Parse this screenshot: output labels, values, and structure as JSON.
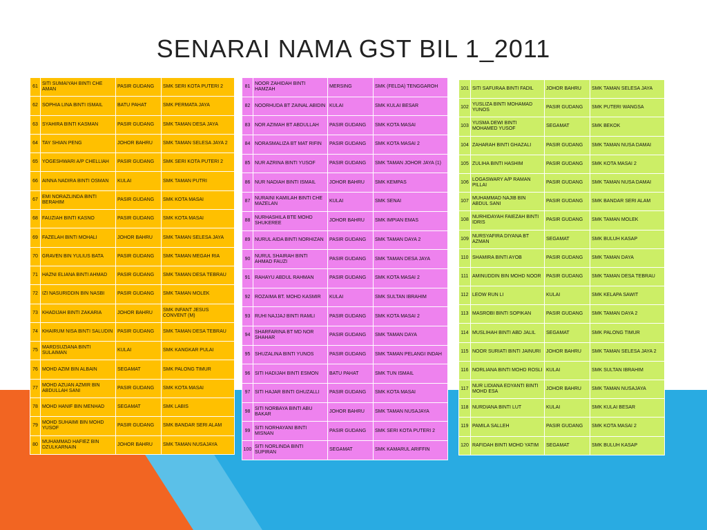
{
  "title": "SENARAI NAMA GST BIL 1_2011",
  "colors": {
    "table1_fill": "#ffc000",
    "table2_fill": "#ee82ee",
    "table3_fill": "#ccee66",
    "shape_orange": "#f26522",
    "shape_blue": "#29abe2",
    "shape_light_blue": "#5bc0e8"
  },
  "table1": [
    {
      "no": "61",
      "name": "SITI SUMAIYAH BINTI CHE AMAN",
      "district": "PASIR GUDANG",
      "school": "SMK SERI KOTA PUTERI 2"
    },
    {
      "no": "62",
      "name": "SOPHIA LINA BINTI ISMAIL",
      "district": "BATU PAHAT",
      "school": "SMK PERMATA JAYA"
    },
    {
      "no": "63",
      "name": "SYAHIRA BINTI KASMAN",
      "district": "PASIR GUDANG",
      "school": "SMK TAMAN DESA JAYA"
    },
    {
      "no": "64",
      "name": "TAY SHIAN PENG",
      "district": "JOHOR BAHRU",
      "school": "SMK TAMAN SELESA JAYA 2"
    },
    {
      "no": "65",
      "name": "YOGESHWARI A/P CHELLIAH",
      "district": "PASIR GUDANG",
      "school": "SMK SERI KOTA PUTERI 2"
    },
    {
      "no": "66",
      "name": "AINNA NADIRA BINTI OSMAN",
      "district": "KULAI",
      "school": "SMK TAMAN PUTRI"
    },
    {
      "no": "67",
      "name": "EMI NORAZLINDA BINTI BERAHIM",
      "district": "PASIR GUDANG",
      "school": "SMK KOTA MASAI"
    },
    {
      "no": "68",
      "name": "FAUZIAH BINTI KASNO",
      "district": "PASIR GUDANG",
      "school": "SMK KOTA MASAI"
    },
    {
      "no": "69",
      "name": "FAZELAH BINTI MOHALI",
      "district": "JOHOR BAHRU",
      "school": "SMK TAMAN SELESA JAYA"
    },
    {
      "no": "70",
      "name": "GRAVEN BIN YULIUS BATA",
      "district": "PASIR GUDANG",
      "school": "SMK TAMAN MEGAH RIA"
    },
    {
      "no": "71",
      "name": "HAZNI ELIANA BINTI AHMAD",
      "district": "PASIR GUDANG",
      "school": "SMK TAMAN DESA TEBRAU"
    },
    {
      "no": "72",
      "name": "IZI NASURIDDIN BIN NASBI",
      "district": "PASIR GUDANG",
      "school": "SMK TAMAN MOLEK"
    },
    {
      "no": "73",
      "name": "KHADIJAH BINTI ZAKARIA",
      "district": "JOHOR BAHRU",
      "school": "SMK INFANT JESUS CONVENT (M)"
    },
    {
      "no": "74",
      "name": "KHAIRUM NISA BINTI SALUDIN",
      "district": "PASIR GUDANG",
      "school": "SMK TAMAN DESA TEBRAU"
    },
    {
      "no": "75",
      "name": "MARDSUZIANA BINTI SULAIMAN",
      "district": "KULAI",
      "school": "SMK KANGKAR PULAI"
    },
    {
      "no": "76",
      "name": "MOHD AZIM BIN ALBAIN",
      "district": "SEGAMAT",
      "school": "SMK PALONG TIMUR"
    },
    {
      "no": "77",
      "name": "MOHD AZUAN AZMIR BIN ABDULLAH SANI",
      "district": "PASIR GUDANG",
      "school": "SMK KOTA MASAI"
    },
    {
      "no": "78",
      "name": "MOHD HANIF BIN MENHAD",
      "district": "SEGAMAT",
      "school": "SMK LABIS"
    },
    {
      "no": "79",
      "name": "MOHD SUHAIMI BIN MOHD YUSOF",
      "district": "PASIR GUDANG",
      "school": "SMK BANDAR SERI ALAM"
    },
    {
      "no": "80",
      "name": "MUHAMMAD HAFIEZ BIN DZULKARNAIN",
      "district": "JOHOR BAHRU",
      "school": "SMK TAMAN NUSAJAYA"
    }
  ],
  "table2": [
    {
      "no": "81",
      "name": "NOOR ZAHIDAH BINTI HAMZAH",
      "district": "MERSING",
      "school": "SMK (FELDA) TENGGAROH"
    },
    {
      "no": "82",
      "name": "NOORHUDA BT ZAINAL ABIDIN",
      "district": "KULAI",
      "school": "SMK KULAI BESAR"
    },
    {
      "no": "83",
      "name": "NOR AZIMAH BT ABDULLAH",
      "district": "PASIR GUDANG",
      "school": "SMK KOTA MASAI"
    },
    {
      "no": "84",
      "name": "NORASMALIZA BT MAT RIFIN",
      "district": "PASIR GUDANG",
      "school": "SMK KOTA MASAI 2"
    },
    {
      "no": "85",
      "name": "NUR AZRINA BINTI YUSOF",
      "district": "PASIR GUDANG",
      "school": "SMK TAMAN JOHOR JAYA (1)"
    },
    {
      "no": "86",
      "name": "NUR NADIAH BINTI ISMAIL",
      "district": "JOHOR BAHRU",
      "school": "SMK KEMPAS"
    },
    {
      "no": "87",
      "name": "NURAINI KAMILAH BINTI CHE MAZELAN",
      "district": "KULAI",
      "school": "SMK SENAI"
    },
    {
      "no": "88",
      "name": "NURHASHILA BTE MOHD SHUKEREE",
      "district": "JOHOR BAHRU",
      "school": "SMK IMPIAN EMAS"
    },
    {
      "no": "89",
      "name": "NURUL AIDA BINTI NORHIZAN",
      "district": "PASIR GUDANG",
      "school": "SMK TAMAN DAYA 2"
    },
    {
      "no": "90",
      "name": "NURUL SHAIRAH BINTI AHMAD FAUZI",
      "district": "PASIR GUDANG",
      "school": "SMK TAMAN DESA JAYA"
    },
    {
      "no": "91",
      "name": "RAHAYU ABDUL RAHMAN",
      "district": "PASIR GUDANG",
      "school": "SMK KOTA MASAI 2"
    },
    {
      "no": "92",
      "name": "ROZAIMA BT. MOHD KASMIR",
      "district": "KULAI",
      "school": "SMK SULTAN IBRAHIM"
    },
    {
      "no": "93",
      "name": "RUHI NAJJAJ BINTI RAMLI",
      "district": "PASIR GUDANG",
      "school": "SMK KOTA MASAI 2"
    },
    {
      "no": "94",
      "name": "SHARFARINA BT MD NOR SHAHAR",
      "district": "PASIR GUDANG",
      "school": "SMK TAMAN DAYA"
    },
    {
      "no": "95",
      "name": "SHUZALINA BINTI YUNOS",
      "district": "PASIR GUDANG",
      "school": "SMK TAMAN PELANGI INDAH"
    },
    {
      "no": "96",
      "name": "SITI HADIJAH BINTI ESMON",
      "district": "BATU PAHAT",
      "school": "SMK TUN ISMAIL"
    },
    {
      "no": "97",
      "name": "SITI HAJAR BINTI GHUZALLI",
      "district": "PASIR GUDANG",
      "school": "SMK KOTA MASAI"
    },
    {
      "no": "98",
      "name": "SITI NORBAYA BINTI ABU BAKAR",
      "district": "JOHOR BAHRU",
      "school": "SMK TAMAN NUSAJAYA"
    },
    {
      "no": "99",
      "name": "SITI NORHAYANI BINTI MISNAN",
      "district": "PASIR GUDANG",
      "school": "SMK SERI KOTA PUTERI 2"
    },
    {
      "no": "100",
      "name": "SITI NORLINDA BINTI SUPIRAN",
      "district": "SEGAMAT",
      "school": "SMK KAMARUL ARIFFIN"
    }
  ],
  "table3": [
    {
      "no": "101",
      "name": "SITI SAFURAA BINTI FADIL",
      "district": "JOHOR BAHRU",
      "school": "SMK TAMAN SELESA JAYA"
    },
    {
      "no": "102",
      "name": "YUSLIZA BINTI MOHAMAD YUNOS",
      "district": "PASIR GUDANG",
      "school": "SMK PUTERI WANGSA"
    },
    {
      "no": "103",
      "name": "YUSMA DEWI BINTI MOHAMED YUSOF",
      "district": "SEGAMAT",
      "school": "SMK BEKOK"
    },
    {
      "no": "104",
      "name": "ZAHARAH BINTI GHAZALI",
      "district": "PASIR GUDANG",
      "school": "SMK TAMAN NUSA DAMAI"
    },
    {
      "no": "105",
      "name": "ZULIHA BINTI HASHIM",
      "district": "PASIR GUDANG",
      "school": "SMK KOTA MASAI 2"
    },
    {
      "no": "106",
      "name": "LOGASWARY A/P RAMAN PILLAI",
      "district": "PASIR GUDANG",
      "school": "SMK TAMAN NUSA DAMAI"
    },
    {
      "no": "107",
      "name": "MUHAMMAD NAJIB BIN ABDUL SANI",
      "district": "PASIR GUDANG",
      "school": "SMK BANDAR SERI ALAM"
    },
    {
      "no": "108",
      "name": "NURHIDAYAH FAIEZAH BINTI IDRIS",
      "district": "PASIR GUDANG",
      "school": "SMK TAMAN MOLEK"
    },
    {
      "no": "109",
      "name": "NURSYAFIRA DIYANA BT AZMAN",
      "district": "SEGAMAT",
      "school": "SMK BULUH KASAP"
    },
    {
      "no": "110",
      "name": "SHAMIRA BINTI AYOB",
      "district": "PASIR GUDANG",
      "school": "SMK TAMAN DAYA"
    },
    {
      "no": "111",
      "name": "AMINUDDIN BIN MOHD NOOR",
      "district": "PASIR GUDANG",
      "school": "SMK TAMAN DESA TEBRAU"
    },
    {
      "no": "112",
      "name": "LEOW RUN LI",
      "district": "KULAI",
      "school": "SMK KELAPA SAWIT"
    },
    {
      "no": "113",
      "name": "MASROBI BINTI SOPIKAN",
      "district": "PASIR GUDANG",
      "school": "SMK TAMAN DAYA 2"
    },
    {
      "no": "114",
      "name": "MUSLIHAH BINTI ABD JALIL",
      "district": "SEGAMAT",
      "school": "SMK PALONG TIMUR"
    },
    {
      "no": "115",
      "name": "NOOR SURIATI BINTI JAINURI",
      "district": "JOHOR BAHRU",
      "school": "SMK TAMAN SELESA JAYA 2"
    },
    {
      "no": "116",
      "name": "NORLIANA BINTI MOHD ROSLI",
      "district": "KULAI",
      "school": "SMK SULTAN IBRAHIM"
    },
    {
      "no": "117",
      "name": "NUR LIDIANA EDYANTI BINTI MOHD ESA",
      "district": "JOHOR BAHRU",
      "school": "SMK TAMAN NUSAJAYA"
    },
    {
      "no": "118",
      "name": "NURDIANA BINTI LUT",
      "district": "KULAI",
      "school": "SMK KULAI BESAR"
    },
    {
      "no": "119",
      "name": "PAMILA SALLEH",
      "district": "PASIR GUDANG",
      "school": "SMK KOTA MASAI 2"
    },
    {
      "no": "120",
      "name": "RAFIDAH BINTI MOHD YATIM",
      "district": "SEGAMAT",
      "school": "SMK BULUH KASAP"
    }
  ]
}
